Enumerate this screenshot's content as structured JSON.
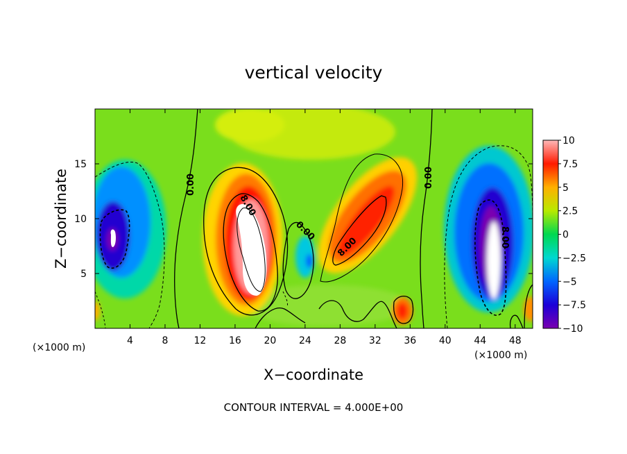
{
  "chart_data": {
    "type": "heatmap",
    "title": "vertical velocity",
    "xlabel": "X−coordinate",
    "ylabel": "Z−coordinate",
    "x_unit_left": "(×1000 m)",
    "x_unit_right": "(×1000 m)",
    "xlim": [
      0,
      50
    ],
    "ylim": [
      0,
      20
    ],
    "x_ticks": [
      4,
      8,
      12,
      16,
      20,
      24,
      28,
      32,
      36,
      40,
      44,
      48
    ],
    "y_ticks": [
      5,
      10,
      15
    ],
    "footer": "CONTOUR INTERVAL = 4.000E+00",
    "colorbar": {
      "range": [
        -10,
        10
      ],
      "ticks": [
        "10",
        "7.5",
        "5",
        "2.5",
        "0",
        "−2.5",
        "−5",
        "−7.5",
        "−10"
      ],
      "colors": [
        "#7a00b0",
        "#1b00d8",
        "#0055ff",
        "#00b8ff",
        "#00e0b0",
        "#00d84c",
        "#5ee000",
        "#d8f000",
        "#ffd400",
        "#ff8800",
        "#ff3000",
        "#ff0000",
        "#ffffff"
      ]
    },
    "contour_labels": [
      "0.00",
      "0.00",
      "8.00",
      "0.00",
      "8.00",
      "8.00"
    ]
  }
}
